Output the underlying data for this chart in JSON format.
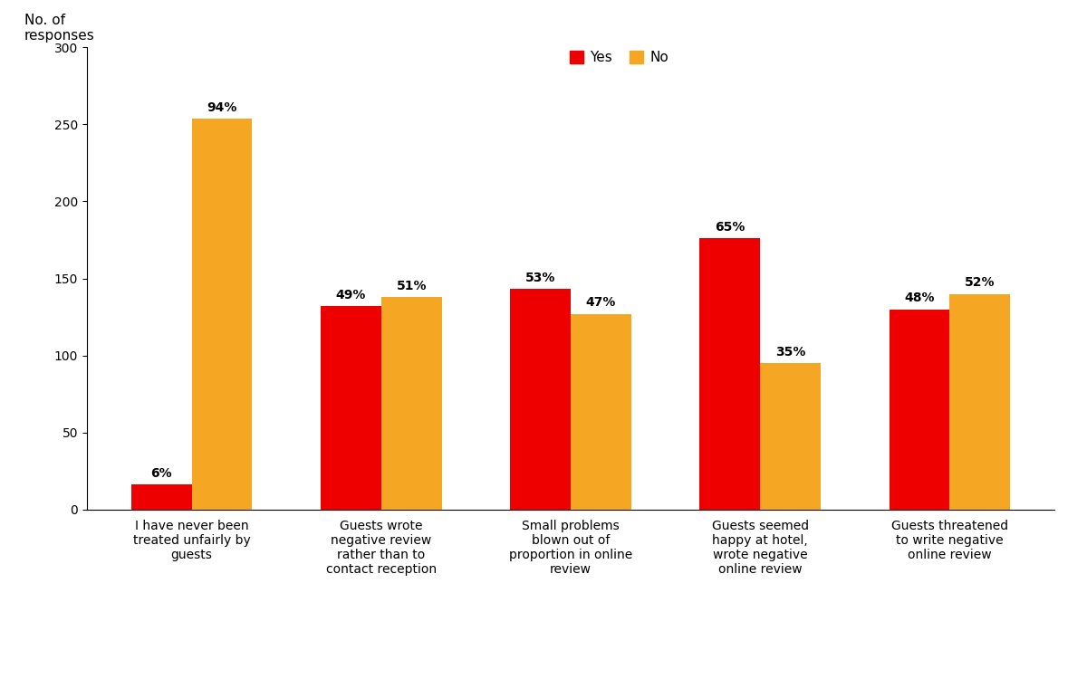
{
  "categories": [
    "I have never been\ntreated unfairly by\nguests",
    "Guests wrote\nnegative review\nrather than to\ncontact reception",
    "Small problems\nblown out of\nproportion in online\nreview",
    "Guests seemed\nhappy at hotel,\nwrote negative\nonline review",
    "Guests threatened\nto write negative\nonline review"
  ],
  "yes_values": [
    16,
    132,
    143,
    176,
    130
  ],
  "no_values": [
    254,
    138,
    127,
    95,
    140
  ],
  "yes_pct": [
    "6%",
    "49%",
    "53%",
    "65%",
    "48%"
  ],
  "no_pct": [
    "94%",
    "51%",
    "47%",
    "35%",
    "52%"
  ],
  "yes_color": "#ee0000",
  "no_color": "#f5a623",
  "ylabel_line1": "No. of",
  "ylabel_line2": "responses",
  "ylim": [
    0,
    300
  ],
  "yticks": [
    0,
    50,
    100,
    150,
    200,
    250,
    300
  ],
  "legend_yes": "Yes",
  "legend_no": "No",
  "bar_width": 0.32,
  "background_color": "#ffffff",
  "label_fontsize": 10,
  "tick_fontsize": 10,
  "ylabel_fontsize": 11,
  "legend_fontsize": 11
}
